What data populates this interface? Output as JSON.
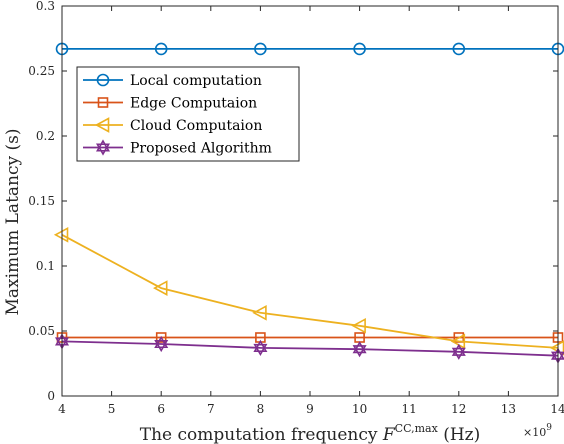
{
  "chart_data": {
    "type": "line",
    "title": "",
    "xlabel": "The computation frequency F^{CC,max} (Hz)",
    "xlabel_parts": {
      "prefix": "The computation frequency ",
      "symbol": "F",
      "superscript": "CC,max",
      "suffix": " (Hz)"
    },
    "x_exponent_label": "×10",
    "x_exponent_power": "9",
    "ylabel": "Maximum Latancy (s)",
    "x": [
      4,
      6,
      8,
      10,
      12,
      14
    ],
    "xlim": [
      4,
      14
    ],
    "ylim": [
      0,
      0.3
    ],
    "xticks": [
      "4",
      "5",
      "6",
      "7",
      "8",
      "9",
      "10",
      "11",
      "12",
      "13",
      "14"
    ],
    "xtick_values": [
      4,
      5,
      6,
      7,
      8,
      9,
      10,
      11,
      12,
      13,
      14
    ],
    "yticks": [
      "0",
      "0.05",
      "0.1",
      "0.15",
      "0.2",
      "0.25",
      "0.3"
    ],
    "ytick_values": [
      0,
      0.05,
      0.1,
      0.15,
      0.2,
      0.25,
      0.3
    ],
    "grid": false,
    "legend_position": "upper-left",
    "series": [
      {
        "name": "Local computation",
        "values": [
          0.267,
          0.267,
          0.267,
          0.267,
          0.267,
          0.267
        ],
        "color": "#0072BD",
        "marker": "circle"
      },
      {
        "name": "Edge Computaion",
        "values": [
          0.045,
          0.045,
          0.045,
          0.045,
          0.045,
          0.045
        ],
        "color": "#D95319",
        "marker": "square"
      },
      {
        "name": "Cloud Computaion",
        "values": [
          0.124,
          0.083,
          0.064,
          0.054,
          0.042,
          0.037
        ],
        "color": "#EDB120",
        "marker": "triangle-left"
      },
      {
        "name": "Proposed Algorithm",
        "values": [
          0.042,
          0.04,
          0.037,
          0.036,
          0.034,
          0.031
        ],
        "color": "#7E2F8E",
        "marker": "hexagram"
      }
    ]
  }
}
